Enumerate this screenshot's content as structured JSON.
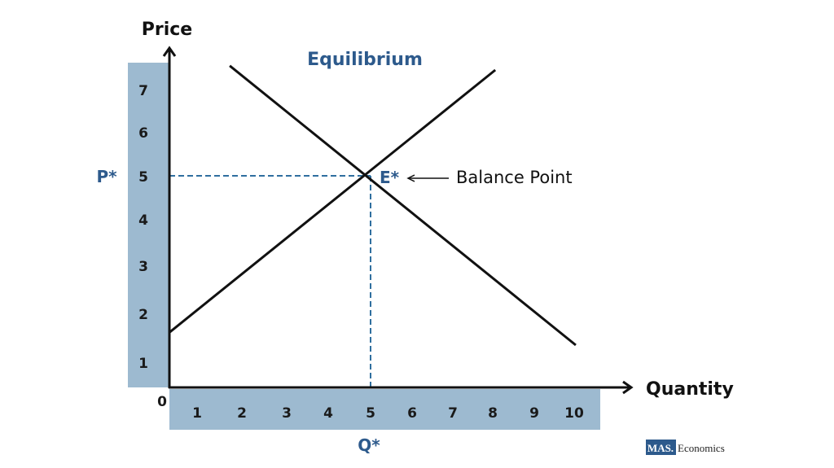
{
  "chart_data": {
    "type": "line",
    "title": "Equilibrium",
    "xlabel": "Quantity",
    "ylabel": "Price",
    "origin_label": "0",
    "x_ticks": [
      "1",
      "2",
      "3",
      "4",
      "5",
      "6",
      "7",
      "8",
      "9",
      "10"
    ],
    "y_ticks": [
      "7",
      "6",
      "5",
      "4",
      "3",
      "2",
      "1"
    ],
    "series": [
      {
        "points": [
          [
            1.5,
            7.6
          ],
          [
            10.1,
            1.0
          ]
        ]
      },
      {
        "points": [
          [
            0.0,
            1.3
          ],
          [
            8.1,
            7.5
          ]
        ]
      }
    ],
    "equilibrium": {
      "x": 5,
      "y": 5,
      "label": "E*",
      "price_label": "P*",
      "quantity_label": "Q*"
    },
    "annotation": "Balance Point",
    "grid": false
  },
  "logo": {
    "mark": "MAS.",
    "text": "Economics"
  },
  "colors": {
    "accent": "#2d5a8c",
    "band": "#9dbad0",
    "dashed": "#2f6f9f",
    "line": "#111111"
  }
}
